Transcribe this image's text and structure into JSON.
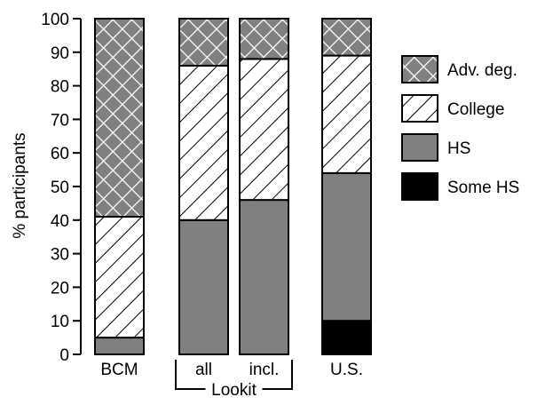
{
  "chart_data": {
    "type": "bar",
    "stacked": true,
    "ylabel": "% participants",
    "ylim": [
      0,
      100
    ],
    "yticks": [
      0,
      10,
      20,
      30,
      40,
      50,
      60,
      70,
      80,
      90,
      100
    ],
    "categories": [
      "BCM",
      "all",
      "incl.",
      "U.S."
    ],
    "group_label": "Lookit",
    "grouped_categories": [
      "all",
      "incl."
    ],
    "series": [
      {
        "name": "Some HS",
        "values": [
          0,
          0,
          0,
          10
        ],
        "fill": "solid",
        "color": "#000000"
      },
      {
        "name": "HS",
        "values": [
          5,
          40,
          46,
          44
        ],
        "fill": "solid",
        "color": "#808080"
      },
      {
        "name": "College",
        "values": [
          36,
          46,
          42,
          35
        ],
        "fill": "diagonal-hatch",
        "color": "#ffffff"
      },
      {
        "name": "Adv. deg.",
        "values": [
          59,
          14,
          12,
          11
        ],
        "fill": "crosshatch",
        "color": "#808080"
      }
    ],
    "legend": {
      "placement": "right",
      "order": [
        "Adv. deg.",
        "College",
        "HS",
        "Some HS"
      ]
    },
    "grid": false
  }
}
